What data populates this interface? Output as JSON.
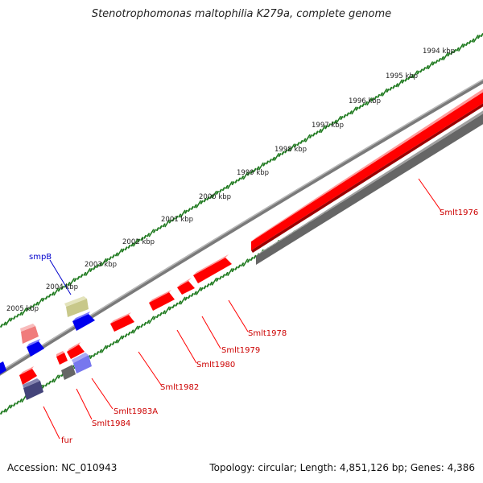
{
  "title": "Stenotrophomonas maltophilia K279a, complete genome",
  "footer": {
    "accession": "Accession: NC_010943",
    "summary": "Topology: circular; Length: 4,851,126 bp; Genes: 4,386"
  },
  "colors": {
    "backbone": "#808080",
    "tick": "#1f7a1f",
    "gene_red": "#ff0000",
    "gene_blue": "#0000ee",
    "gene_label_red": "#cc0000",
    "gene_label_blue": "#0000cc"
  },
  "kbp_labels": [
    "1994 kbp",
    "1995 kbp",
    "1996 kbp",
    "1997 kbp",
    "1998 kbp",
    "1999 kbp",
    "2000 kbp",
    "2001 kbp",
    "2002 kbp",
    "2003 kbp",
    "2004 kbp",
    "2005 kbp"
  ],
  "gene_labels": [
    "Smlt1976",
    "Smlt1978",
    "Smlt1979",
    "Smlt1980",
    "Smlt1982",
    "Smlt1983A",
    "Smlt1984",
    "fur",
    "smpB"
  ]
}
